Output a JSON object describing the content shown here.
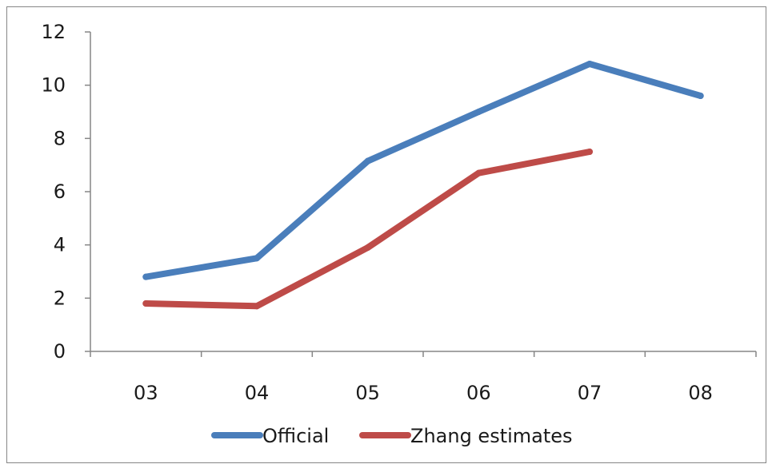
{
  "chart_data": {
    "type": "line",
    "title": "",
    "xlabel": "",
    "ylabel": "",
    "categories": [
      "03",
      "04",
      "05",
      "06",
      "07",
      "08"
    ],
    "ylim": [
      0,
      12
    ],
    "yticks": [
      "0",
      "2",
      "4",
      "6",
      "8",
      "10",
      "12"
    ],
    "grid": false,
    "legend_position": "bottom",
    "series": [
      {
        "name": "Official",
        "color": "#4a7ebb",
        "values": [
          2.8,
          3.5,
          7.15,
          9.0,
          10.8,
          9.6
        ]
      },
      {
        "name": "Zhang estimates",
        "color": "#be4b48",
        "values": [
          1.8,
          1.7,
          3.9,
          6.7,
          7.5,
          null
        ]
      }
    ]
  }
}
